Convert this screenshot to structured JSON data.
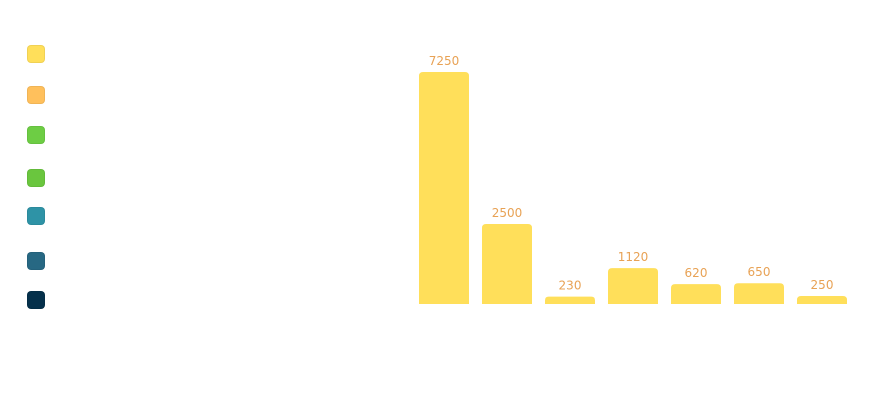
{
  "colors": {
    "bar": "#ffdf5a",
    "value_label": "#e8a255"
  },
  "legend": [
    {
      "label": "",
      "color": "#ffdf5a"
    },
    {
      "label": "",
      "color": "#ffc05c"
    },
    {
      "label": "",
      "color": "#6dcd44"
    },
    {
      "label": "",
      "color": "#6ac63e"
    },
    {
      "label": "",
      "color": "#2e93a6"
    },
    {
      "label": "",
      "color": "#276883"
    },
    {
      "label": "",
      "color": "#05304b"
    }
  ],
  "chart_data": {
    "type": "bar",
    "title": "",
    "xlabel": "",
    "ylabel": "",
    "categories": [
      "",
      "",
      "",
      "",
      "",
      "",
      ""
    ],
    "values": [
      7250,
      2500,
      230,
      1120,
      620,
      650,
      250
    ],
    "data_labels": [
      "7250",
      "2500",
      "230",
      "1120",
      "620",
      "650",
      "250"
    ],
    "ylim": [
      0,
      7250
    ],
    "grid": false,
    "legend_position": "left"
  }
}
